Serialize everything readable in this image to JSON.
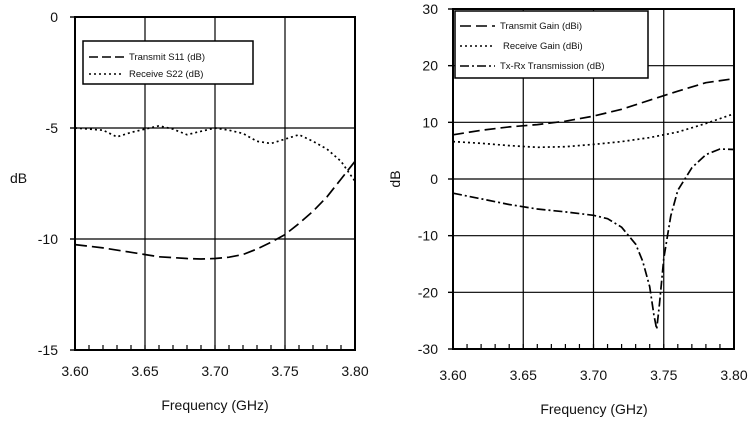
{
  "chart_data": [
    {
      "type": "line",
      "xlabel": "Frequency (GHz)",
      "ylabel": "dB",
      "xlim": [
        3.6,
        3.8
      ],
      "ylim": [
        -15,
        0
      ],
      "xticks": [
        "3.60",
        "3.65",
        "3.70",
        "3.75",
        "3.80"
      ],
      "yticks": [
        "0",
        "-5",
        "-10",
        "-15"
      ],
      "grid": true,
      "legend_position": "top-left",
      "series": [
        {
          "name": "Transmit S11 (dB)",
          "style": "dashed",
          "x": [
            3.6,
            3.62,
            3.64,
            3.66,
            3.68,
            3.69,
            3.7,
            3.71,
            3.72,
            3.73,
            3.74,
            3.75,
            3.76,
            3.77,
            3.78,
            3.79,
            3.8
          ],
          "y": [
            -10.25,
            -10.4,
            -10.6,
            -10.8,
            -10.88,
            -10.9,
            -10.88,
            -10.82,
            -10.7,
            -10.45,
            -10.15,
            -9.8,
            -9.3,
            -8.75,
            -8.1,
            -7.3,
            -6.5
          ]
        },
        {
          "name": "Receive S22 (dB)",
          "style": "dotted",
          "x": [
            3.6,
            3.62,
            3.63,
            3.64,
            3.65,
            3.66,
            3.67,
            3.68,
            3.69,
            3.7,
            3.71,
            3.72,
            3.73,
            3.74,
            3.75,
            3.76,
            3.77,
            3.78,
            3.79,
            3.8
          ],
          "y": [
            -5.0,
            -5.1,
            -5.4,
            -5.2,
            -5.05,
            -4.9,
            -5.05,
            -5.3,
            -5.15,
            -5.0,
            -5.1,
            -5.25,
            -5.6,
            -5.7,
            -5.5,
            -5.3,
            -5.6,
            -5.95,
            -6.5,
            -7.4
          ]
        }
      ]
    },
    {
      "type": "line",
      "xlabel": "Frequency (GHz)",
      "ylabel": "dB",
      "xlim": [
        3.6,
        3.8
      ],
      "ylim": [
        -30,
        30
      ],
      "xticks": [
        "3.60",
        "3.65",
        "3.70",
        "3.75",
        "3.80"
      ],
      "yticks": [
        "30",
        "20",
        "10",
        "0",
        "-10",
        "-20",
        "-30"
      ],
      "grid": true,
      "legend_position": "top",
      "series": [
        {
          "name": "Transmit Gain (dBi)",
          "style": "long-dash",
          "x": [
            3.6,
            3.62,
            3.64,
            3.66,
            3.68,
            3.7,
            3.72,
            3.74,
            3.76,
            3.78,
            3.8
          ],
          "y": [
            7.8,
            8.6,
            9.2,
            9.6,
            10.2,
            11.1,
            12.3,
            13.9,
            15.5,
            17.0,
            17.7
          ]
        },
        {
          "name": "Receive Gain (dBi)",
          "style": "dotted",
          "x": [
            3.6,
            3.62,
            3.64,
            3.66,
            3.68,
            3.7,
            3.72,
            3.74,
            3.76,
            3.78,
            3.8
          ],
          "y": [
            6.6,
            6.3,
            5.9,
            5.6,
            5.7,
            6.1,
            6.6,
            7.3,
            8.3,
            9.8,
            11.5
          ]
        },
        {
          "name": "Tx-Rx Transmission (dB)",
          "style": "dash-dot",
          "x": [
            3.6,
            3.62,
            3.64,
            3.66,
            3.68,
            3.7,
            3.71,
            3.72,
            3.73,
            3.735,
            3.74,
            3.743,
            3.745,
            3.747,
            3.75,
            3.755,
            3.76,
            3.77,
            3.78,
            3.79,
            3.8
          ],
          "y": [
            -2.5,
            -3.5,
            -4.5,
            -5.3,
            -5.8,
            -6.4,
            -7.0,
            -8.5,
            -11.5,
            -14.5,
            -19.0,
            -24.0,
            -26.5,
            -22.0,
            -14.0,
            -6.5,
            -2.0,
            2.0,
            4.3,
            5.3,
            5.2
          ]
        }
      ]
    }
  ]
}
